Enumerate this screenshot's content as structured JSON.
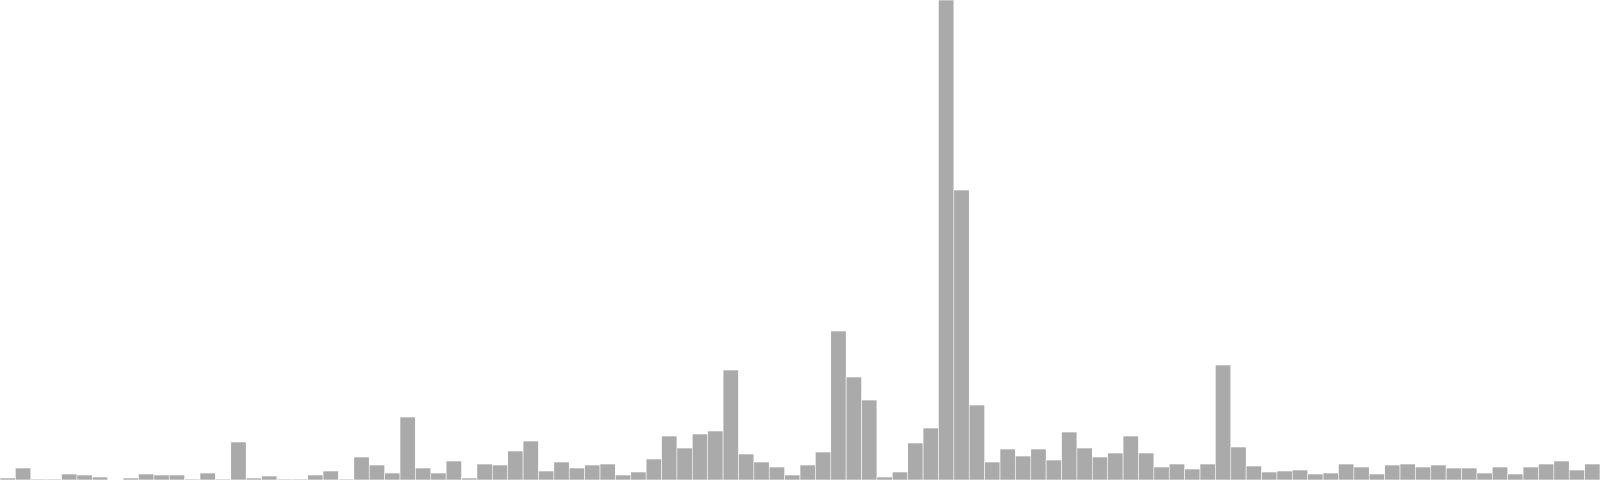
{
  "chart_data": {
    "type": "bar",
    "bar_color": "#aaaaaa",
    "values": [
      2,
      12,
      1,
      1,
      6,
      5,
      3,
      0,
      2,
      6,
      5,
      5,
      1,
      7,
      1,
      38,
      2,
      4,
      1,
      1,
      5,
      9,
      1,
      23,
      15,
      7,
      63,
      12,
      7,
      19,
      2,
      16,
      15,
      29,
      39,
      9,
      18,
      12,
      15,
      16,
      5,
      8,
      21,
      44,
      32,
      46,
      49,
      110,
      26,
      18,
      13,
      5,
      15,
      28,
      149,
      103,
      80,
      3,
      8,
      37,
      52,
      480,
      290,
      75,
      18,
      31,
      24,
      31,
      20,
      48,
      32,
      23,
      27,
      44,
      27,
      13,
      16,
      11,
      16,
      115,
      33,
      14,
      8,
      9,
      10,
      6,
      7,
      16,
      13,
      6,
      15,
      16,
      13,
      15,
      12,
      12,
      7,
      13,
      6,
      13,
      16,
      19,
      10,
      16
    ],
    "ylim": [
      0,
      480
    ],
    "grid": false,
    "legend": "none"
  }
}
